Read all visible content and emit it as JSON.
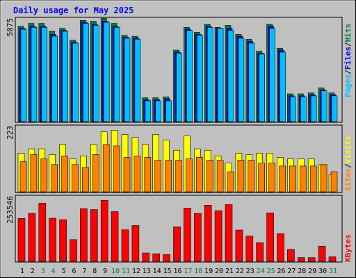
{
  "chart_data": [
    {
      "type": "bar",
      "title": "Daily usage for May 2025",
      "categories": [
        "1",
        "2",
        "3",
        "4",
        "5",
        "6",
        "7",
        "8",
        "9",
        "10",
        "11",
        "12",
        "13",
        "14",
        "15",
        "16",
        "17",
        "18",
        "19",
        "20",
        "21",
        "22",
        "23",
        "24",
        "25",
        "26",
        "27",
        "28",
        "29",
        "30",
        "31"
      ],
      "weekend_days": [
        "3",
        "4",
        "10",
        "11",
        "17",
        "18",
        "24",
        "25",
        "31"
      ],
      "ylabel_parts": [
        "Pages",
        "Files",
        "Hits"
      ],
      "ymax_label": "5075",
      "ylim": [
        0,
        5075
      ],
      "series": [
        {
          "name": "Hits",
          "color": "#008040",
          "values": [
            4800,
            4950,
            4950,
            4550,
            4700,
            4100,
            5100,
            5050,
            5200,
            4950,
            4350,
            4300,
            1200,
            1200,
            1250,
            3600,
            4750,
            4500,
            4900,
            4750,
            4850,
            4400,
            4150,
            3550,
            4900,
            3700,
            1400,
            1400,
            1450,
            1700,
            1450
          ]
        },
        {
          "name": "Files",
          "color": "#0000ff",
          "values": [
            4700,
            4800,
            4800,
            4400,
            4600,
            4000,
            5000,
            4900,
            5050,
            4800,
            4250,
            4200,
            1100,
            1100,
            1150,
            3500,
            4650,
            4400,
            4800,
            4700,
            4700,
            4300,
            4050,
            3450,
            4800,
            3600,
            1300,
            1300,
            1350,
            1600,
            1350
          ]
        },
        {
          "name": "Pages",
          "color": "#00c0ff",
          "values": [
            4650,
            4750,
            4750,
            4300,
            4550,
            3950,
            4950,
            4850,
            5000,
            4750,
            4200,
            4150,
            1050,
            1050,
            1050,
            3450,
            4600,
            4350,
            4750,
            4700,
            4600,
            4200,
            3950,
            3400,
            4700,
            3500,
            1250,
            1250,
            1300,
            1550,
            1300
          ]
        }
      ]
    },
    {
      "type": "bar",
      "ylabel_parts": [
        "Sites",
        "Visits"
      ],
      "ymax_label": "223",
      "ylim": [
        0,
        223
      ],
      "series": [
        {
          "name": "Visits",
          "color": "#ffff00",
          "values": [
            135,
            150,
            150,
            130,
            165,
            115,
            125,
            165,
            210,
            215,
            200,
            190,
            165,
            200,
            180,
            145,
            195,
            150,
            145,
            125,
            100,
            135,
            130,
            135,
            135,
            120,
            115,
            115,
            115,
            95,
            60
          ]
        },
        {
          "name": "Sites",
          "color": "#ff8000",
          "values": [
            105,
            130,
            115,
            95,
            125,
            95,
            85,
            130,
            165,
            160,
            120,
            125,
            120,
            110,
            110,
            110,
            115,
            120,
            110,
            110,
            70,
            110,
            110,
            100,
            100,
            90,
            90,
            90,
            90,
            95,
            70
          ]
        }
      ]
    },
    {
      "type": "bar",
      "ylabel_parts": [
        "KBytes"
      ],
      "ymax_label": "253546",
      "ylim": [
        0,
        253546
      ],
      "series": [
        {
          "name": "KBytes",
          "color": "#ff0000",
          "values": [
            170000,
            190000,
            230000,
            171000,
            165000,
            86000,
            209000,
            205000,
            242000,
            197000,
            125000,
            142000,
            33000,
            30000,
            27000,
            137000,
            211000,
            190000,
            222000,
            201000,
            225000,
            124000,
            100000,
            74000,
            192000,
            110000,
            47000,
            15000,
            15000,
            60000,
            18000
          ]
        }
      ]
    }
  ]
}
